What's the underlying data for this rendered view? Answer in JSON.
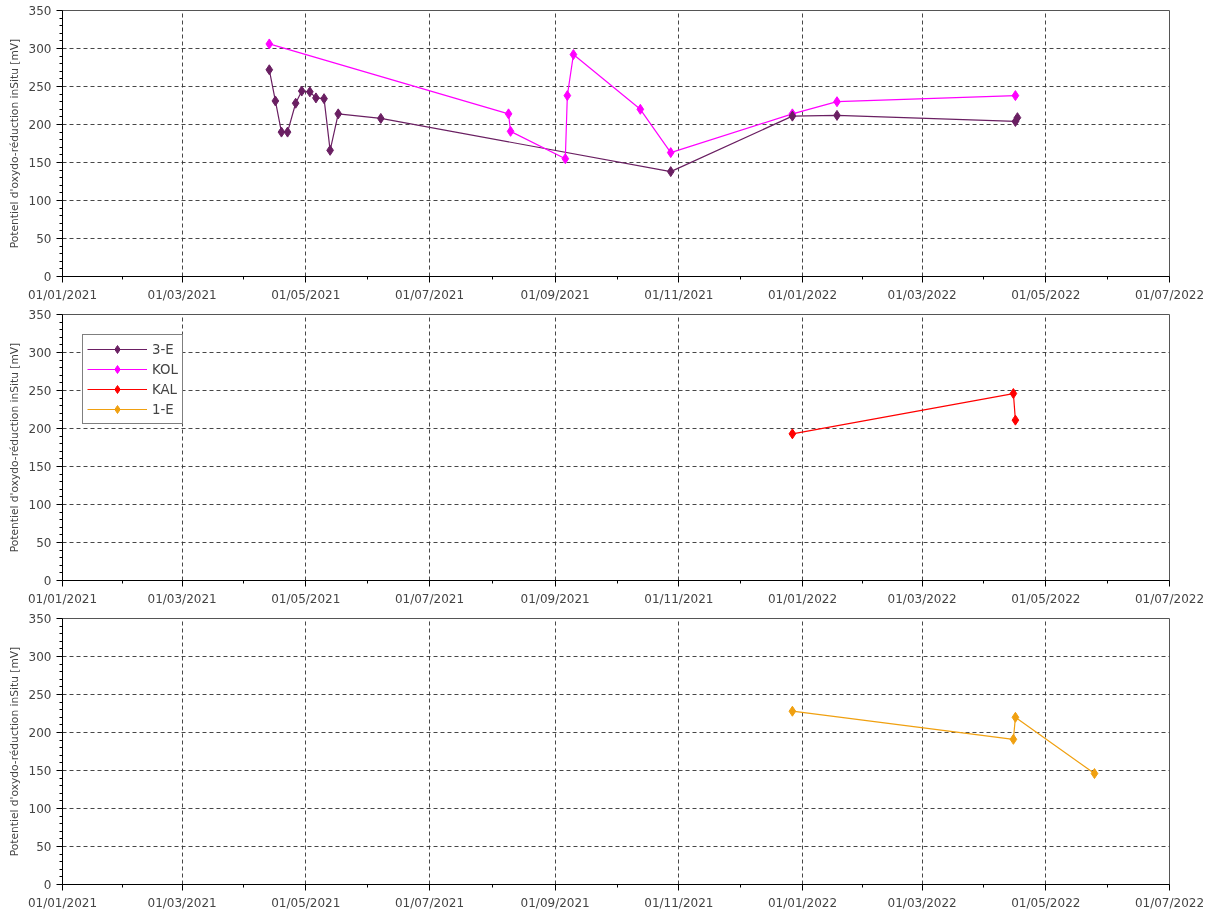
{
  "chart_data": [
    {
      "type": "line",
      "ylabel": "Potentiel d'oxydo-réduction inSitu [mV]",
      "marker": "diamond",
      "line_style": "solid",
      "grid": true,
      "legend": "bottom left",
      "xlim": [
        "2021-01-01",
        "2022-07-01"
      ],
      "xticks": [
        {
          "value": "2021-01-01",
          "label": "01/01/2021"
        },
        {
          "value": "2021-03-01",
          "label": "01/03/2021"
        },
        {
          "value": "2021-05-01",
          "label": "01/05/2021"
        },
        {
          "value": "2021-07-01",
          "label": "01/07/2021"
        },
        {
          "value": "2021-09-01",
          "label": "01/09/2021"
        },
        {
          "value": "2021-11-01",
          "label": "01/11/2021"
        },
        {
          "value": "2022-01-01",
          "label": "01/01/2022"
        },
        {
          "value": "2022-03-01",
          "label": "01/03/2022"
        },
        {
          "value": "2022-05-01",
          "label": "01/05/2022"
        },
        {
          "value": "2022-07-01",
          "label": "01/07/2022"
        }
      ],
      "ylim": [
        0,
        350
      ],
      "yticks": [
        0,
        50,
        100,
        150,
        200,
        250,
        300,
        350
      ],
      "series": [
        {
          "name": "3-E",
          "color": "#6a1f62",
          "x": [
            "2021-04-13",
            "2021-04-16",
            "2021-04-19",
            "2021-04-22",
            "2021-04-26",
            "2021-04-29",
            "2021-05-03",
            "2021-05-06",
            "2021-05-10",
            "2021-05-13",
            "2021-05-17",
            "2021-06-07",
            "2021-10-28",
            "2021-12-27",
            "2022-01-18",
            "2022-04-16",
            "2022-04-17"
          ],
          "values": [
            272,
            231,
            190,
            190,
            228,
            244,
            243,
            235,
            234,
            166,
            214,
            208,
            138,
            211,
            212,
            204,
            209
          ]
        },
        {
          "name": "KOL",
          "color": "#ff00ff",
          "x": [
            "2021-04-13",
            "2021-08-09",
            "2021-08-10",
            "2021-09-06",
            "2021-09-07",
            "2021-09-10",
            "2021-10-13",
            "2021-10-28",
            "2021-12-27",
            "2022-01-18",
            "2022-04-16"
          ],
          "values": [
            306,
            214,
            191,
            155,
            238,
            292,
            220,
            163,
            214,
            230,
            238
          ]
        }
      ]
    },
    {
      "type": "line",
      "ylabel": "Potentiel d'oxydo-réduction inSitu [mV]",
      "marker": "diamond",
      "line_style": "solid",
      "grid": true,
      "legend": "top left",
      "xlim": [
        "2021-01-01",
        "2022-07-01"
      ],
      "xticks": [
        {
          "value": "2021-01-01",
          "label": "01/01/2021"
        },
        {
          "value": "2021-03-01",
          "label": "01/03/2021"
        },
        {
          "value": "2021-05-01",
          "label": "01/05/2021"
        },
        {
          "value": "2021-07-01",
          "label": "01/07/2021"
        },
        {
          "value": "2021-09-01",
          "label": "01/09/2021"
        },
        {
          "value": "2021-11-01",
          "label": "01/11/2021"
        },
        {
          "value": "2022-01-01",
          "label": "01/01/2022"
        },
        {
          "value": "2022-03-01",
          "label": "01/03/2022"
        },
        {
          "value": "2022-05-01",
          "label": "01/05/2022"
        },
        {
          "value": "2022-07-01",
          "label": "01/07/2022"
        }
      ],
      "ylim": [
        0,
        350
      ],
      "yticks": [
        0,
        50,
        100,
        150,
        200,
        250,
        300,
        350
      ],
      "series": [
        {
          "name": "KAL",
          "color": "#ff0000",
          "x": [
            "2021-12-27",
            "2022-04-15",
            "2022-04-16"
          ],
          "values": [
            193,
            246,
            211
          ]
        }
      ]
    },
    {
      "type": "line",
      "ylabel": "Potentiel d'oxydo-réduction inSitu [mV]",
      "marker": "diamond",
      "line_style": "solid",
      "grid": true,
      "legend": "top left",
      "xlim": [
        "2021-01-01",
        "2022-07-01"
      ],
      "xticks": [
        {
          "value": "2021-01-01",
          "label": "01/01/2021"
        },
        {
          "value": "2021-03-01",
          "label": "01/03/2021"
        },
        {
          "value": "2021-05-01",
          "label": "01/05/2021"
        },
        {
          "value": "2021-07-01",
          "label": "01/07/2021"
        },
        {
          "value": "2021-09-01",
          "label": "01/09/2021"
        },
        {
          "value": "2021-11-01",
          "label": "01/11/2021"
        },
        {
          "value": "2022-01-01",
          "label": "01/01/2022"
        },
        {
          "value": "2022-03-01",
          "label": "01/03/2022"
        },
        {
          "value": "2022-05-01",
          "label": "01/05/2022"
        },
        {
          "value": "2022-07-01",
          "label": "01/07/2022"
        }
      ],
      "ylim": [
        0,
        350
      ],
      "yticks": [
        0,
        50,
        100,
        150,
        200,
        250,
        300,
        350
      ],
      "series": [
        {
          "name": "1-E",
          "color": "#f0a010",
          "x": [
            "2021-12-27",
            "2022-04-15",
            "2022-04-16",
            "2022-05-25"
          ],
          "values": [
            228,
            191,
            220,
            146
          ]
        }
      ]
    }
  ]
}
